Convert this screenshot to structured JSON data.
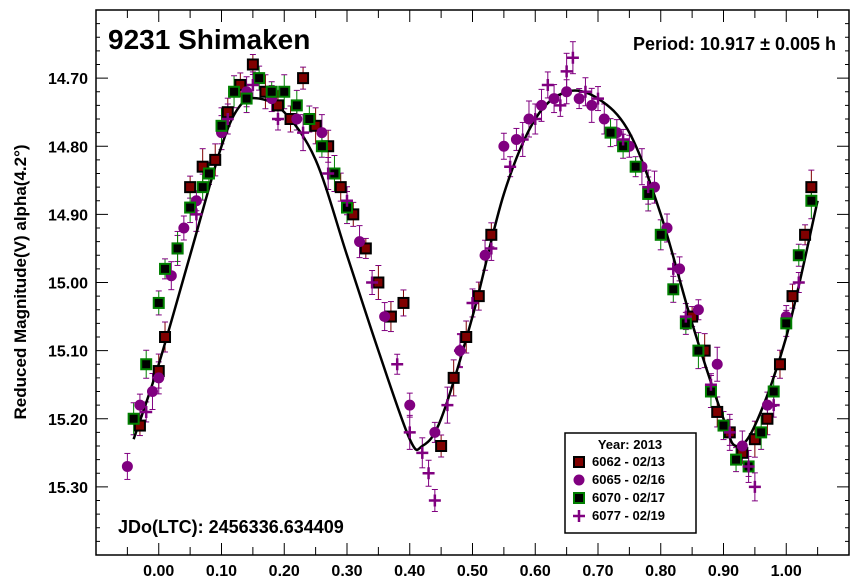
{
  "chart_data": {
    "type": "scatter",
    "title": "9231 Shimaken",
    "period_label": "Period: 10.917 ± 0.005 h",
    "epoch_label": "JDo(LTC): 2456336.634409",
    "xlabel": "",
    "ylabel": "Reduced Magnitude(V) alpha(4.2°)",
    "xlim": [
      -0.1,
      1.1
    ],
    "ylim": [
      15.4,
      14.6
    ],
    "y_inverted": true,
    "grid": false,
    "x_ticks": [
      "0.00",
      "0.10",
      "0.20",
      "0.30",
      "0.40",
      "0.50",
      "0.60",
      "0.70",
      "0.80",
      "0.90",
      "1.00"
    ],
    "y_ticks": [
      "14.70",
      "14.80",
      "14.90",
      "15.00",
      "15.10",
      "15.20",
      "15.30"
    ],
    "legend": {
      "title": "Year: 2013",
      "placement": "bottom-right",
      "entries": [
        {
          "label": "6062 - 02/13",
          "marker": "square",
          "fill": "#800000",
          "edge": "#000000"
        },
        {
          "label": "6065 - 02/16",
          "marker": "circle",
          "fill": "#800080",
          "edge": "#800080"
        },
        {
          "label": "6070 - 02/17",
          "marker": "square",
          "fill": "#000000",
          "edge": "#008000"
        },
        {
          "label": "6077 - 02/19",
          "marker": "plus",
          "fill": "#800080",
          "edge": "#800080"
        }
      ]
    },
    "fit_curve": {
      "color": "#000000",
      "x": [
        -0.04,
        0.0,
        0.05,
        0.1,
        0.13,
        0.16,
        0.2,
        0.25,
        0.3,
        0.35,
        0.4,
        0.42,
        0.45,
        0.5,
        0.55,
        0.6,
        0.65,
        0.7,
        0.75,
        0.8,
        0.85,
        0.9,
        0.92,
        0.95,
        1.0,
        1.05
      ],
      "y": [
        15.23,
        15.12,
        14.96,
        14.8,
        14.74,
        14.73,
        14.75,
        14.82,
        14.96,
        15.1,
        15.23,
        15.24,
        15.2,
        15.05,
        14.87,
        14.76,
        14.72,
        14.73,
        14.78,
        14.9,
        15.06,
        15.2,
        15.24,
        15.21,
        15.08,
        14.88
      ]
    },
    "series": [
      {
        "name": "6062 - 02/13",
        "x": [
          -0.03,
          0.0,
          0.01,
          0.03,
          0.05,
          0.07,
          0.09,
          0.11,
          0.13,
          0.15,
          0.17,
          0.19,
          0.21,
          0.23,
          0.25,
          0.27,
          0.29,
          0.31,
          0.33,
          0.35,
          0.37,
          0.39,
          0.45,
          0.47,
          0.49,
          0.51,
          0.53,
          0.85,
          0.87,
          0.89,
          0.91,
          0.93,
          0.95,
          0.97,
          0.99,
          1.01,
          1.03,
          1.04
        ],
        "y": [
          15.21,
          15.13,
          15.08,
          14.95,
          14.86,
          14.83,
          14.82,
          14.75,
          14.71,
          14.68,
          14.72,
          14.74,
          14.76,
          14.7,
          14.77,
          14.8,
          14.86,
          14.9,
          14.95,
          15.0,
          15.05,
          15.03,
          15.24,
          15.14,
          15.08,
          15.02,
          14.93,
          15.05,
          15.1,
          15.19,
          15.22,
          15.25,
          15.23,
          15.2,
          15.12,
          15.02,
          14.93,
          14.86
        ]
      },
      {
        "name": "6065 - 02/16",
        "x": [
          -0.05,
          -0.03,
          -0.01,
          0.0,
          0.02,
          0.04,
          0.06,
          0.1,
          0.14,
          0.18,
          0.22,
          0.26,
          0.32,
          0.36,
          0.4,
          0.44,
          0.48,
          0.52,
          0.55,
          0.57,
          0.59,
          0.61,
          0.63,
          0.65,
          0.67,
          0.69,
          0.71,
          0.73,
          0.75,
          0.77,
          0.79,
          0.81,
          0.83,
          0.86,
          0.89,
          0.93,
          0.97,
          1.0
        ],
        "y": [
          15.27,
          15.18,
          15.16,
          15.14,
          14.99,
          14.92,
          14.88,
          14.78,
          14.72,
          14.73,
          14.76,
          14.78,
          14.94,
          15.05,
          15.18,
          15.22,
          15.1,
          14.96,
          14.8,
          14.79,
          14.76,
          14.74,
          14.73,
          14.72,
          14.73,
          14.74,
          14.76,
          14.78,
          14.8,
          14.83,
          14.86,
          14.92,
          14.98,
          15.04,
          15.12,
          15.24,
          15.18,
          15.05
        ]
      },
      {
        "name": "6070 - 02/17",
        "x": [
          -0.04,
          -0.02,
          0.0,
          0.01,
          0.03,
          0.05,
          0.07,
          0.08,
          0.1,
          0.12,
          0.14,
          0.16,
          0.18,
          0.2,
          0.22,
          0.24,
          0.26,
          0.28,
          0.3,
          0.72,
          0.74,
          0.76,
          0.78,
          0.8,
          0.82,
          0.84,
          0.86,
          0.88,
          0.9,
          0.92,
          0.94,
          0.96,
          0.98,
          1.0,
          1.02,
          1.04
        ],
        "y": [
          15.2,
          15.12,
          15.03,
          14.98,
          14.95,
          14.89,
          14.86,
          14.84,
          14.77,
          14.72,
          14.73,
          14.7,
          14.72,
          14.72,
          14.74,
          14.76,
          14.8,
          14.84,
          14.89,
          14.78,
          14.8,
          14.83,
          14.87,
          14.93,
          15.01,
          15.06,
          15.1,
          15.16,
          15.21,
          15.26,
          15.27,
          15.22,
          15.16,
          15.06,
          14.96,
          14.88
        ]
      },
      {
        "name": "6077 - 02/19",
        "x": [
          -0.02,
          0.06,
          0.11,
          0.15,
          0.19,
          0.23,
          0.27,
          0.3,
          0.34,
          0.38,
          0.4,
          0.42,
          0.43,
          0.44,
          0.46,
          0.48,
          0.5,
          0.53,
          0.56,
          0.58,
          0.6,
          0.62,
          0.64,
          0.65,
          0.66,
          0.68,
          0.7,
          0.74,
          0.78,
          0.82,
          0.84,
          0.88,
          0.91,
          0.94,
          0.95,
          0.98,
          1.02
        ],
        "y": [
          15.19,
          14.9,
          14.76,
          14.71,
          14.76,
          14.78,
          14.84,
          14.88,
          15.0,
          15.12,
          15.22,
          15.25,
          15.28,
          15.32,
          15.18,
          15.1,
          15.03,
          14.95,
          14.83,
          14.79,
          14.76,
          14.71,
          14.74,
          14.69,
          14.67,
          14.72,
          14.73,
          14.79,
          14.86,
          14.98,
          15.05,
          15.15,
          15.22,
          15.27,
          15.3,
          15.18,
          15.0
        ]
      }
    ]
  }
}
